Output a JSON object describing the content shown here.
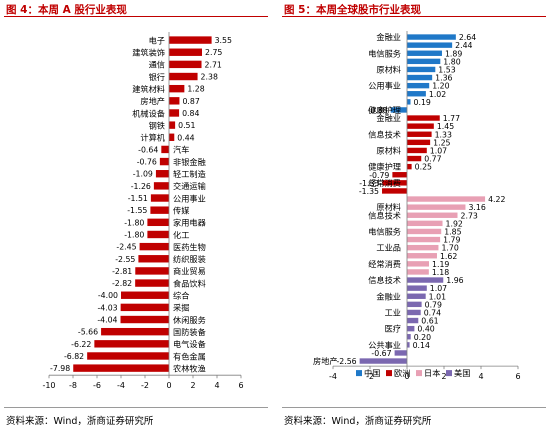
{
  "left_panel": {
    "title": "图 4：本周 A 股行业表现",
    "source": "资料来源：Wind，浙商证券研究所"
  },
  "right_panel": {
    "title": "图 5：本周全球股市行业表现",
    "source": "资料来源：Wind，浙商证券研究所"
  },
  "colors": {
    "title_red": "#c00000",
    "bar_red": "#c00000",
    "china_blue": "#1f78c8",
    "europe_red": "#c00000",
    "japan_pink": "#e8a0b4",
    "usa_purple": "#7b68b0"
  },
  "chart_data": [
    {
      "type": "bar",
      "orientation": "horizontal",
      "categories": [
        "电子",
        "建筑装饰",
        "通信",
        "银行",
        "建筑材料",
        "房地产",
        "机械设备",
        "钢铁",
        "计算机",
        "汽车",
        "非银金融",
        "轻工制造",
        "交通运输",
        "公用事业",
        "传媒",
        "家用电器",
        "化工",
        "医药生物",
        "纺织服装",
        "商业贸易",
        "食品饮料",
        "综合",
        "采掘",
        "休闲服务",
        "国防装备",
        "电气设备",
        "有色金属",
        "农林牧渔"
      ],
      "values": [
        3.55,
        2.75,
        2.71,
        2.38,
        1.28,
        0.87,
        0.84,
        0.51,
        0.44,
        -0.64,
        -0.76,
        -1.09,
        -1.26,
        -1.51,
        -1.55,
        -1.8,
        -1.8,
        -2.45,
        -2.55,
        -2.81,
        -2.82,
        -4.0,
        -4.03,
        -4.04,
        -5.66,
        -6.22,
        -6.82,
        -7.98
      ],
      "value_labels": [
        "3.55",
        "2.75",
        "2.71",
        "2.38",
        "1.28",
        "0.87",
        "0.84",
        "0.51",
        "0.44",
        "-0.64",
        "-0.76",
        "-1.09",
        "-1.26",
        "-1.51",
        "-1.55",
        "-1.80",
        "-1.80",
        "-2.45",
        "-2.55",
        "-2.81",
        "-2.82",
        "-4.00",
        "-4.03",
        "-4.04",
        "-5.66",
        "-6.22",
        "-6.82",
        "-7.98"
      ],
      "xlim": [
        -10,
        6
      ],
      "xticks": [
        "-10",
        "-8",
        "-6",
        "-4",
        "-2",
        "0",
        "2",
        "4",
        "6"
      ],
      "grid": false
    },
    {
      "type": "bar",
      "orientation": "horizontal",
      "groups": [
        {
          "name": "中国",
          "color_key": "china_blue",
          "rows": [
            {
              "label": "金融业",
              "value": 2.64
            },
            {
              "label": "",
              "value": 2.44
            },
            {
              "label": "电信服务",
              "value": 1.89
            },
            {
              "label": "",
              "value": 1.8
            },
            {
              "label": "原材料",
              "value": 1.53
            },
            {
              "label": "",
              "value": 1.36
            },
            {
              "label": "公用事业",
              "value": 1.2
            },
            {
              "label": "",
              "value": 1.02
            },
            {
              "label": "",
              "value": 0.19
            },
            {
              "label": "健康护理",
              "value": -0.88
            }
          ]
        },
        {
          "name": "欧洲",
          "color_key": "europe_red",
          "rows": [
            {
              "label": "金融业",
              "value": 1.77
            },
            {
              "label": "",
              "value": 1.45
            },
            {
              "label": "信息技术",
              "value": 1.33
            },
            {
              "label": "",
              "value": 1.25
            },
            {
              "label": "原材料",
              "value": 1.07
            },
            {
              "label": "",
              "value": 0.77
            },
            {
              "label": "健康护理",
              "value": 0.25
            },
            {
              "label": "",
              "value": -0.79
            },
            {
              "label": "经常消费",
              "value": -1.33
            },
            {
              "label": "",
              "value": -1.35
            }
          ]
        },
        {
          "name": "日本",
          "color_key": "japan_pink",
          "rows": [
            {
              "label": "",
              "value": 4.22
            },
            {
              "label": "原材料",
              "value": 3.16
            },
            {
              "label": "信息技术",
              "value": 2.73
            },
            {
              "label": "",
              "value": 1.92
            },
            {
              "label": "电信服务",
              "value": 1.85
            },
            {
              "label": "",
              "value": 1.79
            },
            {
              "label": "工业品",
              "value": 1.7
            },
            {
              "label": "",
              "value": 1.62
            },
            {
              "label": "经常消费",
              "value": 1.19
            },
            {
              "label": "",
              "value": 1.18
            }
          ]
        },
        {
          "name": "美国",
          "color_key": "usa_purple",
          "rows": [
            {
              "label": "信息技术",
              "value": 1.96
            },
            {
              "label": "",
              "value": 1.07
            },
            {
              "label": "金融业",
              "value": 1.01
            },
            {
              "label": "",
              "value": 0.79
            },
            {
              "label": "工业",
              "value": 0.74
            },
            {
              "label": "",
              "value": 0.61
            },
            {
              "label": "医疗",
              "value": 0.4
            },
            {
              "label": "",
              "value": 0.2
            },
            {
              "label": "公共事业",
              "value": 0.14
            },
            {
              "label": "",
              "value": -0.67
            },
            {
              "label": "房地产",
              "value": -2.56
            }
          ]
        }
      ],
      "value_labels": [
        "2.64",
        "2.44",
        "1.89",
        "1.80",
        "1.53",
        "1.36",
        "1.20",
        "1.02",
        "0.19",
        "-0.88",
        "1.77",
        "1.45",
        "1.33",
        "1.25",
        "1.07",
        "0.77",
        "0.25",
        "-0.79",
        "-1.33",
        "-1.35",
        "4.22",
        "3.16",
        "2.73",
        "1.92",
        "1.85",
        "1.79",
        "1.70",
        "1.62",
        "1.19",
        "1.18",
        "1.96",
        "1.07",
        "1.01",
        "0.79",
        "0.74",
        "0.61",
        "0.40",
        "0.20",
        "0.14",
        "-0.67",
        "-2.56"
      ],
      "legend": [
        "中国",
        "欧洲",
        "日本",
        "美国"
      ],
      "legend_position": "bottom-left",
      "xlim": [
        -4,
        6
      ],
      "xticks": [
        "-4",
        "-2",
        "0",
        "2",
        "4",
        "6"
      ],
      "grid": false
    }
  ]
}
